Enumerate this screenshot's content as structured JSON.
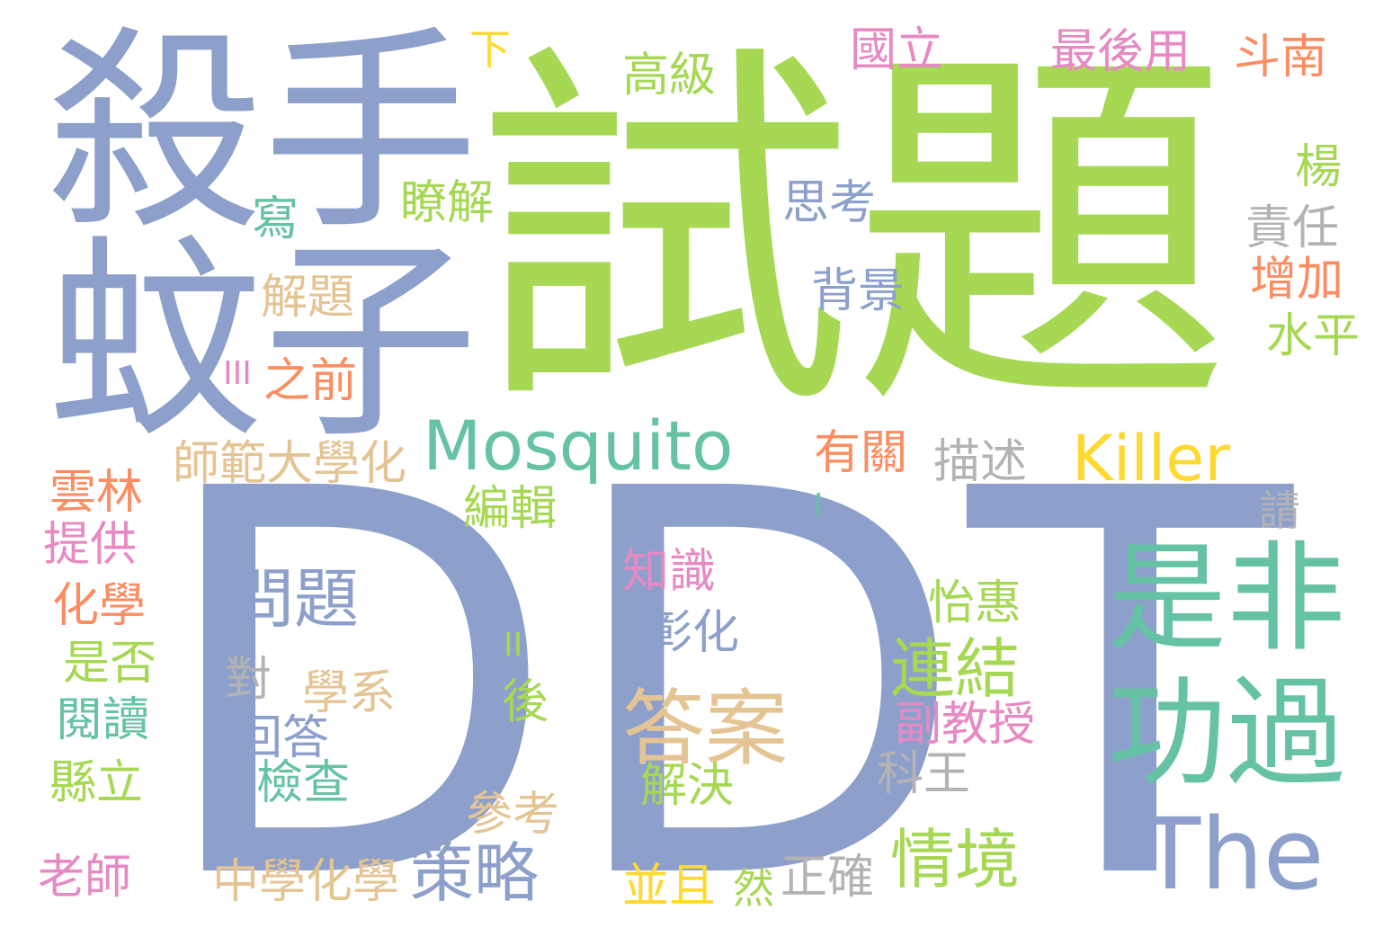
{
  "word_cloud": {
    "colors": {
      "blue": "#8da0cb",
      "green": "#a6d854",
      "teal": "#66c2a5",
      "yellow": "#ffd92f",
      "tan": "#e5c494",
      "orange": "#fc8d62",
      "pink": "#e78ac3",
      "gray": "#b3b3b3"
    },
    "words": [
      {
        "text": "DDT",
        "color": "blue"
      },
      {
        "text": "試題",
        "color": "green"
      },
      {
        "text": "殺手",
        "color": "blue"
      },
      {
        "text": "蚊子",
        "color": "blue"
      },
      {
        "text": "Mosquito",
        "color": "teal"
      },
      {
        "text": "Killer",
        "color": "yellow"
      },
      {
        "text": "是非",
        "color": "teal"
      },
      {
        "text": "功過",
        "color": "teal"
      },
      {
        "text": "The",
        "color": "blue"
      },
      {
        "text": "答案",
        "color": "tan"
      },
      {
        "text": "問題",
        "color": "blue"
      },
      {
        "text": "連結",
        "color": "green"
      },
      {
        "text": "情境",
        "color": "green"
      },
      {
        "text": "策略",
        "color": "blue"
      },
      {
        "text": "師範大學化",
        "color": "tan"
      },
      {
        "text": "中學化學",
        "color": "tan"
      },
      {
        "text": "下",
        "color": "yellow"
      },
      {
        "text": "高級",
        "color": "green"
      },
      {
        "text": "國立",
        "color": "pink"
      },
      {
        "text": "最後用",
        "color": "pink"
      },
      {
        "text": "斗南",
        "color": "orange"
      },
      {
        "text": "楊",
        "color": "green"
      },
      {
        "text": "瞭解",
        "color": "green"
      },
      {
        "text": "思考",
        "color": "blue"
      },
      {
        "text": "責任",
        "color": "gray"
      },
      {
        "text": "寫",
        "color": "teal"
      },
      {
        "text": "增加",
        "color": "orange"
      },
      {
        "text": "解題",
        "color": "tan"
      },
      {
        "text": "背景",
        "color": "blue"
      },
      {
        "text": "水平",
        "color": "green"
      },
      {
        "text": "III",
        "color": "pink"
      },
      {
        "text": "之前",
        "color": "orange"
      },
      {
        "text": "有關",
        "color": "orange"
      },
      {
        "text": "描述",
        "color": "gray"
      },
      {
        "text": "I",
        "color": "teal"
      },
      {
        "text": "雲林",
        "color": "orange"
      },
      {
        "text": "編輯",
        "color": "green"
      },
      {
        "text": "請",
        "color": "gray"
      },
      {
        "text": "提供",
        "color": "pink"
      },
      {
        "text": "知識",
        "color": "pink"
      },
      {
        "text": "化學",
        "color": "orange"
      },
      {
        "text": "怡惠",
        "color": "green"
      },
      {
        "text": "II",
        "color": "green"
      },
      {
        "text": "彰化",
        "color": "blue"
      },
      {
        "text": "是否",
        "color": "green"
      },
      {
        "text": "對",
        "color": "gray"
      },
      {
        "text": "學系",
        "color": "tan"
      },
      {
        "text": "後",
        "color": "green"
      },
      {
        "text": "閱讀",
        "color": "teal"
      },
      {
        "text": "副教授",
        "color": "pink"
      },
      {
        "text": "回答",
        "color": "blue"
      },
      {
        "text": "縣立",
        "color": "green"
      },
      {
        "text": "檢查",
        "color": "teal"
      },
      {
        "text": "解決",
        "color": "green"
      },
      {
        "text": "科王",
        "color": "gray"
      },
      {
        "text": "參考",
        "color": "tan"
      },
      {
        "text": "老師",
        "color": "pink"
      },
      {
        "text": "並且",
        "color": "yellow"
      },
      {
        "text": "然",
        "color": "green"
      },
      {
        "text": "正確",
        "color": "gray"
      }
    ]
  }
}
